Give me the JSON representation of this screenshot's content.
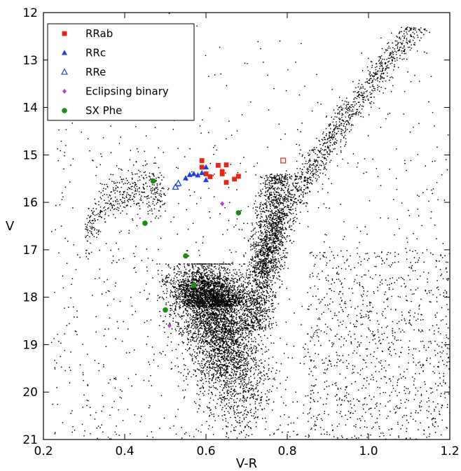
{
  "chart_data": {
    "type": "scatter",
    "xlabel": "V-R",
    "ylabel": "V",
    "xlim": [
      0.2,
      1.2
    ],
    "ylim": [
      21,
      12
    ],
    "y_inverted": true,
    "grid": false,
    "legend_placement": "top-left",
    "x_ticks": [
      "0.2",
      "0.4",
      "0.6",
      "0.8",
      "1.0",
      "1.2"
    ],
    "y_ticks": [
      "12",
      "13",
      "14",
      "15",
      "16",
      "17",
      "18",
      "19",
      "20",
      "21"
    ],
    "field_stars": {
      "color": "#000000",
      "description_regions": [
        {
          "region": "main-sequence",
          "x_center": 0.65,
          "y_center": 19.3
        },
        {
          "region": "red-giant-branch",
          "x_from": 0.7,
          "x_to": 1.1,
          "y_from": 18.5,
          "y_to": 12.3
        },
        {
          "region": "horizontal-branch",
          "x_from": 0.3,
          "x_to": 0.5,
          "y_from": 17.5,
          "y_to": 15.6
        }
      ]
    },
    "series": [
      {
        "name": "RRab",
        "marker": "square-filled",
        "color": "#ee2211",
        "points": [
          [
            0.59,
            15.12
          ],
          [
            0.59,
            15.26
          ],
          [
            0.63,
            15.22
          ],
          [
            0.65,
            15.21
          ],
          [
            0.6,
            15.4
          ],
          [
            0.61,
            15.46
          ],
          [
            0.64,
            15.35
          ],
          [
            0.64,
            15.4
          ],
          [
            0.65,
            15.58
          ],
          [
            0.67,
            15.51
          ],
          [
            0.68,
            15.45
          ]
        ]
      },
      {
        "name": "RRab",
        "marker": "square-open",
        "color": "#ee2211",
        "in_legend": false,
        "points": [
          [
            0.79,
            15.12
          ]
        ]
      },
      {
        "name": "RRc",
        "marker": "triangle-filled",
        "color": "#1b3fe8",
        "points": [
          [
            0.53,
            15.62
          ],
          [
            0.55,
            15.49
          ],
          [
            0.56,
            15.42
          ],
          [
            0.57,
            15.4
          ],
          [
            0.58,
            15.43
          ],
          [
            0.59,
            15.38
          ],
          [
            0.6,
            15.26
          ],
          [
            0.6,
            15.53
          ]
        ]
      },
      {
        "name": "RRe",
        "marker": "triangle-open",
        "color": "#1b3fe8",
        "points": [
          [
            0.525,
            15.68
          ],
          [
            0.532,
            15.6
          ]
        ]
      },
      {
        "name": "Eclipsing binary",
        "marker": "diamond-filled",
        "color": "#b43cc8",
        "points": [
          [
            0.64,
            16.03
          ],
          [
            0.51,
            18.6
          ]
        ]
      },
      {
        "name": "SX Phe",
        "marker": "circle-filled",
        "color": "#1e8a14",
        "points": [
          [
            0.47,
            15.55
          ],
          [
            0.45,
            16.44
          ],
          [
            0.68,
            16.22
          ],
          [
            0.55,
            17.13
          ],
          [
            0.57,
            17.75
          ],
          [
            0.5,
            18.27
          ]
        ]
      }
    ]
  }
}
